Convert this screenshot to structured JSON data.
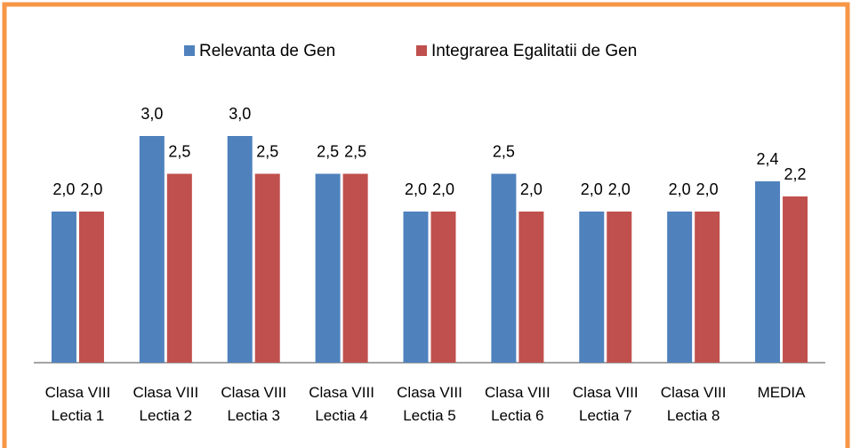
{
  "chart_data": {
    "type": "bar",
    "categories": [
      "Clasa VIII Lectia 1",
      "Clasa VIII Lectia 2",
      "Clasa VIII Lectia 3",
      "Clasa VIII Lectia 4",
      "Clasa VIII Lectia 5",
      "Clasa VIII Lectia 6",
      "Clasa VIII Lectia 7",
      "Clasa VIII Lectia 8",
      "MEDIA"
    ],
    "series": [
      {
        "name": "Relevanta de Gen",
        "color": "#4f81bd",
        "values": [
          2.0,
          3.0,
          3.0,
          2.5,
          2.0,
          2.5,
          2.0,
          2.0,
          2.4
        ],
        "value_labels": [
          "2,0",
          "3,0",
          "3,0",
          "2,5",
          "2,0",
          "2,5",
          "2,0",
          "2,0",
          "2,4"
        ]
      },
      {
        "name": "Integrarea Egalitatii de Gen",
        "color": "#c0504d",
        "values": [
          2.0,
          2.5,
          2.5,
          2.5,
          2.0,
          2.0,
          2.0,
          2.0,
          2.2
        ],
        "value_labels": [
          "2,0",
          "2,5",
          "2,5",
          "2,5",
          "2,0",
          "2,0",
          "2,0",
          "2,0",
          "2,2"
        ]
      }
    ],
    "ylim": [
      0,
      4
    ],
    "legend": "top"
  }
}
